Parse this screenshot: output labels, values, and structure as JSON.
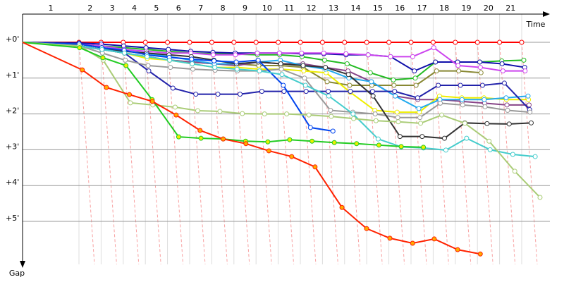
{
  "chart_data": {
    "type": "line",
    "x_label": "Time",
    "y_label": "Gap",
    "categories": [
      "1",
      "2",
      "3",
      "4",
      "5",
      "6",
      "7",
      "8",
      "9",
      "10",
      "11",
      "12",
      "13",
      "14",
      "15",
      "16",
      "17",
      "18",
      "19",
      "20",
      "21"
    ],
    "ylim": [
      0,
      6.2
    ],
    "yticks": [
      {
        "value": 0,
        "label": "+0'"
      },
      {
        "value": 1,
        "label": "+1'"
      },
      {
        "value": 2,
        "label": "+2'"
      },
      {
        "value": 3,
        "label": "+3'"
      },
      {
        "value": 4,
        "label": "+4'"
      },
      {
        "value": 5,
        "label": "+5'"
      }
    ],
    "y_inverted": true,
    "grid": true,
    "series": [
      {
        "color": "#ff0000",
        "marker_fill": "#ffffff",
        "values": [
          0,
          0,
          0,
          0,
          0,
          0,
          0,
          0,
          0,
          0,
          0,
          0,
          0,
          0,
          0,
          0,
          0,
          0,
          0,
          0,
          0
        ]
      },
      {
        "color": "#22bb22",
        "marker_fill": "#ffffff",
        "values": [
          0.05,
          0.1,
          0.15,
          0.2,
          0.25,
          0.3,
          0.32,
          0.33,
          0.35,
          0.35,
          0.4,
          0.5,
          0.6,
          0.85,
          1.05,
          1.0,
          0.55,
          0.55,
          0.55,
          0.52,
          0.5
        ]
      },
      {
        "color": "#1010aa",
        "marker_fill": "#ffffff",
        "values": [
          0.02,
          0.05,
          0.1,
          0.15,
          0.2,
          0.25,
          0.28,
          0.3,
          0.3,
          0.3,
          0.32,
          0.32,
          0.35,
          0.35,
          0.4,
          0.8,
          0.55,
          0.55,
          0.55,
          0.6,
          0.7
        ]
      },
      {
        "color": "#cc44ee",
        "marker_fill": "#ffffff",
        "values": [
          0.05,
          0.1,
          0.2,
          0.25,
          0.3,
          0.3,
          0.35,
          0.35,
          0.3,
          0.3,
          0.3,
          0.3,
          0.32,
          0.35,
          0.4,
          0.4,
          0.15,
          0.65,
          0.7,
          0.8,
          0.8
        ]
      },
      {
        "color": "#888833",
        "marker_fill": "#ffffff",
        "values": [
          0.1,
          0.2,
          0.3,
          0.4,
          0.5,
          0.55,
          0.6,
          0.6,
          0.65,
          0.65,
          0.7,
          1.1,
          1.2,
          1.2,
          1.2,
          1.2,
          0.8,
          0.8,
          0.85,
          null,
          null
        ]
      },
      {
        "color": "#884488",
        "marker_fill": "#ffffff",
        "values": [
          0.05,
          0.15,
          0.3,
          0.4,
          0.5,
          0.55,
          0.6,
          0.65,
          0.55,
          0.6,
          0.6,
          0.7,
          0.8,
          1.1,
          1.5,
          1.6,
          1.6,
          1.65,
          1.7,
          1.75,
          1.75
        ]
      },
      {
        "color": "#eeee00",
        "marker_fill": "#ffffff",
        "values": [
          0.1,
          0.2,
          0.3,
          0.45,
          0.5,
          0.6,
          0.7,
          0.7,
          0.75,
          0.75,
          0.8,
          0.85,
          1.4,
          1.9,
          1.95,
          1.95,
          1.5,
          1.55,
          1.55,
          1.6,
          1.6
        ]
      },
      {
        "color": "#22aaee",
        "marker_fill": "#ffffff",
        "values": [
          0.1,
          0.2,
          0.25,
          0.3,
          0.4,
          0.5,
          0.6,
          0.6,
          0.55,
          0.5,
          0.65,
          0.75,
          1.0,
          1.1,
          1.5,
          1.85,
          1.6,
          1.6,
          1.6,
          1.55,
          1.5
        ]
      },
      {
        "color": "#2222aa",
        "marker_fill": "#ffffff",
        "values": [
          0.1,
          0.2,
          0.3,
          0.8,
          1.28,
          1.45,
          1.45,
          1.45,
          1.37,
          1.37,
          1.37,
          1.37,
          1.37,
          1.37,
          1.37,
          1.55,
          1.2,
          1.2,
          1.2,
          1.14,
          1.88
        ]
      },
      {
        "color": "#999999",
        "marker_fill": "#ffffff",
        "values": [
          0.1,
          0.3,
          0.5,
          0.65,
          0.7,
          0.75,
          0.78,
          0.8,
          0.8,
          0.75,
          1.0,
          1.9,
          1.95,
          2.0,
          2.1,
          2.1,
          1.7,
          1.75,
          1.8,
          1.9,
          1.95
        ]
      },
      {
        "color": "#333333",
        "marker_fill": "#ffffff",
        "values": [
          0.05,
          0.15,
          0.25,
          0.3,
          0.35,
          0.4,
          0.5,
          0.6,
          0.55,
          0.6,
          0.65,
          0.7,
          0.9,
          1.5,
          2.63,
          2.63,
          2.68,
          2.25,
          2.27,
          2.28,
          2.25
        ]
      },
      {
        "color": "#0044ee",
        "marker_fill": "#ffffff",
        "values": [
          0.05,
          0.15,
          0.22,
          0.35,
          0.42,
          0.47,
          0.52,
          0.55,
          0.5,
          1.2,
          2.38,
          2.48,
          null,
          null,
          null,
          null,
          null,
          null,
          null,
          null,
          null
        ]
      },
      {
        "color": "#44cccc",
        "marker_fill": "#ffffff",
        "values": [
          0.1,
          0.2,
          0.3,
          0.4,
          0.5,
          0.6,
          0.7,
          0.75,
          0.8,
          0.9,
          1.2,
          1.5,
          2.0,
          2.7,
          2.92,
          2.95,
          3.01,
          2.68,
          3.0,
          3.13,
          3.19
        ]
      },
      {
        "color": "#aacc77",
        "marker_fill": "#ffffff",
        "values": [
          0.1,
          0.5,
          1.69,
          1.75,
          1.81,
          1.91,
          1.93,
          1.99,
          2.0,
          2.0,
          2.03,
          2.07,
          2.13,
          2.19,
          2.22,
          2.26,
          2.03,
          2.26,
          2.76,
          3.6,
          4.33
        ]
      },
      {
        "color": "#22cc22",
        "marker_fill": "#eeee00",
        "values": [
          0.15,
          0.43,
          0.65,
          1.6,
          2.64,
          2.68,
          2.7,
          2.76,
          2.78,
          2.72,
          2.76,
          2.8,
          2.83,
          2.87,
          2.91,
          2.93,
          null,
          null,
          null,
          null,
          null
        ]
      },
      {
        "color": "#ff2200",
        "marker_fill": "#ffaa00",
        "values": [
          0.77,
          1.26,
          1.46,
          1.65,
          2.03,
          2.46,
          2.7,
          2.83,
          3.03,
          3.19,
          3.48,
          4.61,
          5.2,
          5.47,
          5.61,
          5.49,
          5.79,
          5.91,
          null,
          null,
          null
        ]
      }
    ]
  }
}
